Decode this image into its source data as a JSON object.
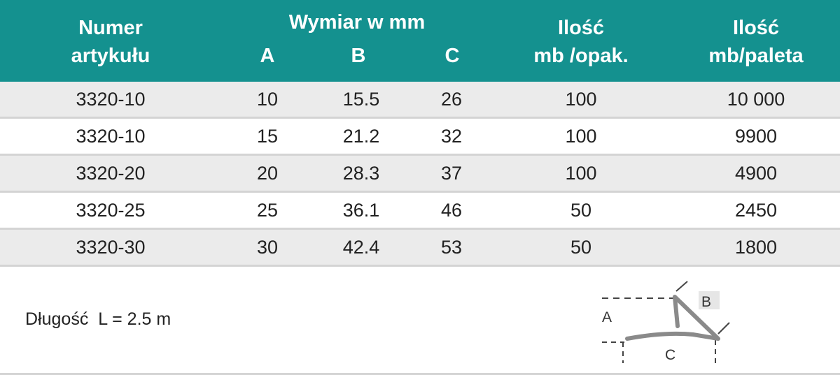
{
  "header": {
    "article_line1": "Numer",
    "article_line2": "artykułu",
    "dimension_title": "Wymiar w mm",
    "dim_a": "A",
    "dim_b": "B",
    "dim_c": "C",
    "qty_pack_line1": "Ilość",
    "qty_pack_line2": "mb /opak.",
    "qty_pallet_line1": "Ilość",
    "qty_pallet_line2": "mb/paleta"
  },
  "rows": [
    {
      "article": "3320-10",
      "a": "10",
      "b": "15.5",
      "c": "26",
      "qty_pack": "100",
      "qty_pallet": "10 000"
    },
    {
      "article": "3320-10",
      "a": "15",
      "b": "21.2",
      "c": "32",
      "qty_pack": "100",
      "qty_pallet": "9900"
    },
    {
      "article": "3320-20",
      "a": "20",
      "b": "28.3",
      "c": "37",
      "qty_pack": "100",
      "qty_pallet": "4900"
    },
    {
      "article": "3320-25",
      "a": "25",
      "b": "36.1",
      "c": "46",
      "qty_pack": "50",
      "qty_pallet": "2450"
    },
    {
      "article": "3320-30",
      "a": "30",
      "b": "42.4",
      "c": "53",
      "qty_pack": "50",
      "qty_pallet": "1800"
    }
  ],
  "length_label": "Długość  L = 2.5 m",
  "diagram": {
    "label_a": "A",
    "label_b": "B",
    "label_c": "C"
  },
  "colors": {
    "header_bg": "#14918f",
    "row_shade": "#ebebeb",
    "divider": "#d4d4d4"
  }
}
